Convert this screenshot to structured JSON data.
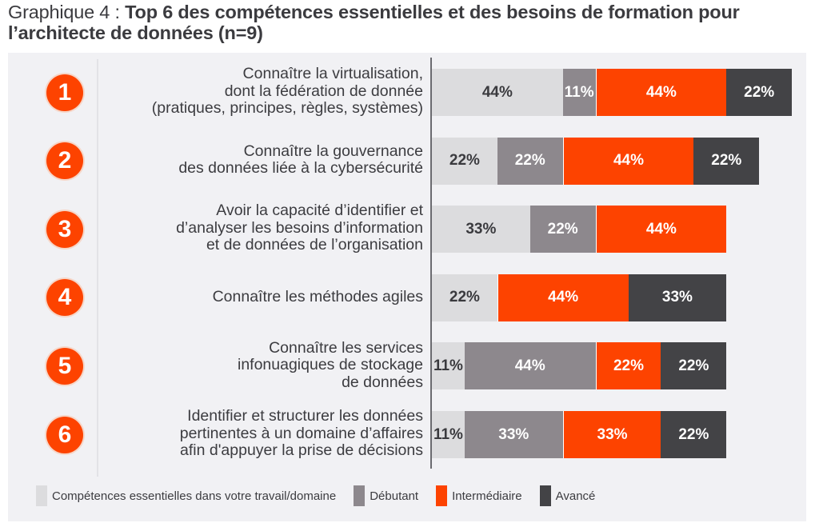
{
  "title": {
    "prefix": "Graphique 4 : ",
    "main": "Top 6 des compétences essentielles et des besoins de formation pour l’architecte de données (n=9)"
  },
  "colors": {
    "essential": "#dcdcde",
    "beginner": "#8d888d",
    "intermediate": "#fd4300",
    "advanced": "#434346",
    "accent": "#fd4300",
    "panel_bg": "#f1f1f4"
  },
  "chart_data": {
    "type": "bar",
    "orientation": "horizontal-stacked",
    "title": "Graphique 4 : Top 6 des compétences essentielles et des besoins de formation pour l’architecte de données (n=9)",
    "xlabel": "",
    "ylabel": "",
    "grid": false,
    "legend_position": "bottom",
    "categories": [
      "Connaître la virtualisation,\ndont la fédération de donnée\n(pratiques, principes, règles, systèmes)",
      "Connaître la gouvernance\ndes données liée à la cybersécurité",
      "Avoir la capacité d’identifier et\nd’analyser les besoins d’information\net de données de l’organisation",
      "Connaître les méthodes agiles",
      "Connaître les services\ninfonuagiques de stockage\nde données",
      "Identifier et structurer les données\npertinentes à un domaine d’affaires\nafin d'appuyer la prise de décisions"
    ],
    "ranks": [
      "1",
      "2",
      "3",
      "4",
      "5",
      "6"
    ],
    "series": [
      {
        "key": "essential",
        "name": "Compétences essentielles dans votre travail/domaine",
        "values": [
          44,
          22,
          33,
          22,
          11,
          11
        ]
      },
      {
        "key": "beginner",
        "name": "Débutant",
        "values": [
          11,
          22,
          22,
          0,
          44,
          33
        ]
      },
      {
        "key": "intermediate",
        "name": "Intermédiaire",
        "values": [
          44,
          44,
          44,
          44,
          22,
          33
        ]
      },
      {
        "key": "advanced",
        "name": "Avancé",
        "values": [
          22,
          22,
          0,
          33,
          22,
          22
        ]
      }
    ],
    "value_suffix": "%"
  },
  "legend": [
    {
      "key": "essential",
      "label": "Compétences essentielles dans votre travail/domaine"
    },
    {
      "key": "beginner",
      "label": "Débutant"
    },
    {
      "key": "intermediate",
      "label": "Intermédiaire"
    },
    {
      "key": "advanced",
      "label": "Avancé"
    }
  ]
}
